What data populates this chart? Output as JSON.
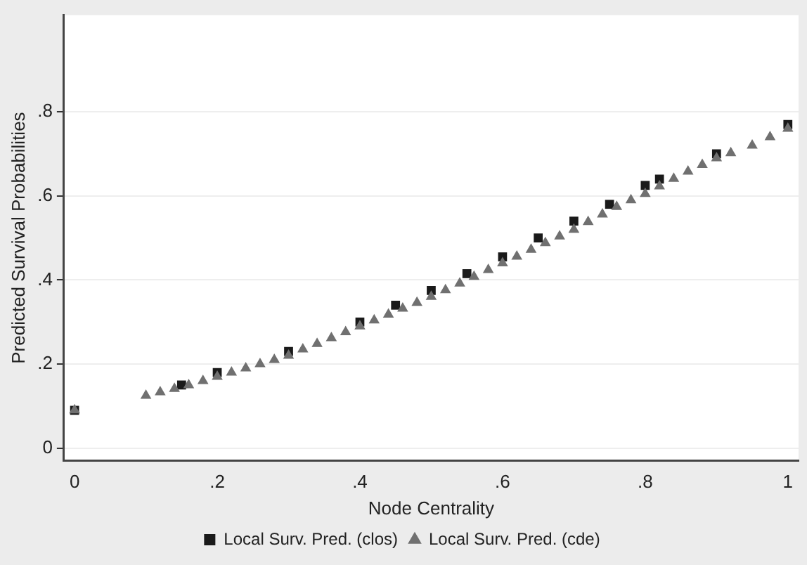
{
  "chart_data": {
    "type": "scatter",
    "xlabel": "Node Centrality",
    "ylabel": "Predicted Survival Probabilities",
    "xlim": [
      -0.015,
      1.015
    ],
    "ylim": [
      -0.03,
      1.03
    ],
    "xticks": [
      0,
      {
        "value": 0.2,
        "label": ".2"
      },
      {
        "value": 0.4,
        "label": ".4"
      },
      {
        "value": 0.6,
        "label": ".6"
      },
      {
        "value": 0.8,
        "label": ".8"
      },
      1
    ],
    "yticks": [
      0,
      {
        "value": 0.2,
        "label": ".2"
      },
      {
        "value": 0.4,
        "label": ".4"
      },
      {
        "value": 0.6,
        "label": ".6"
      },
      {
        "value": 0.8,
        "label": ".8"
      }
    ],
    "grid": "y",
    "legend": "bottom",
    "series": [
      {
        "name": "Local Surv. Pred. (cde)",
        "color": "#707070",
        "marker": "triangle",
        "x": [
          0,
          0.1,
          0.12,
          0.14,
          0.16,
          0.18,
          0.2,
          0.22,
          0.24,
          0.26,
          0.28,
          0.3,
          0.32,
          0.34,
          0.36,
          0.38,
          0.4,
          0.42,
          0.44,
          0.46,
          0.48,
          0.5,
          0.52,
          0.54,
          0.56,
          0.58,
          0.6,
          0.62,
          0.64,
          0.66,
          0.68,
          0.7,
          0.72,
          0.74,
          0.76,
          0.78,
          0.8,
          0.82,
          0.84,
          0.86,
          0.88,
          0.9,
          0.92,
          0.95,
          0.975,
          1
        ],
        "values": [
          0.09,
          0.125,
          0.133,
          0.141,
          0.15,
          0.16,
          0.17,
          0.18,
          0.19,
          0.2,
          0.21,
          0.22,
          0.235,
          0.248,
          0.262,
          0.276,
          0.29,
          0.304,
          0.318,
          0.332,
          0.346,
          0.36,
          0.376,
          0.392,
          0.408,
          0.424,
          0.44,
          0.456,
          0.472,
          0.488,
          0.504,
          0.52,
          0.538,
          0.556,
          0.574,
          0.59,
          0.605,
          0.623,
          0.641,
          0.658,
          0.674,
          0.69,
          0.702,
          0.72,
          0.74,
          0.76
        ]
      },
      {
        "name": "Local Surv. Pred. (clos)",
        "color": "#1a1a1a",
        "marker": "square",
        "x": [
          0,
          0.15,
          0.2,
          0.3,
          0.4,
          0.45,
          0.5,
          0.55,
          0.6,
          0.65,
          0.7,
          0.75,
          0.8,
          0.82,
          0.9,
          1
        ],
        "values": [
          0.09,
          0.15,
          0.18,
          0.23,
          0.3,
          0.34,
          0.375,
          0.415,
          0.455,
          0.5,
          0.54,
          0.58,
          0.625,
          0.64,
          0.7,
          0.77
        ]
      }
    ]
  }
}
